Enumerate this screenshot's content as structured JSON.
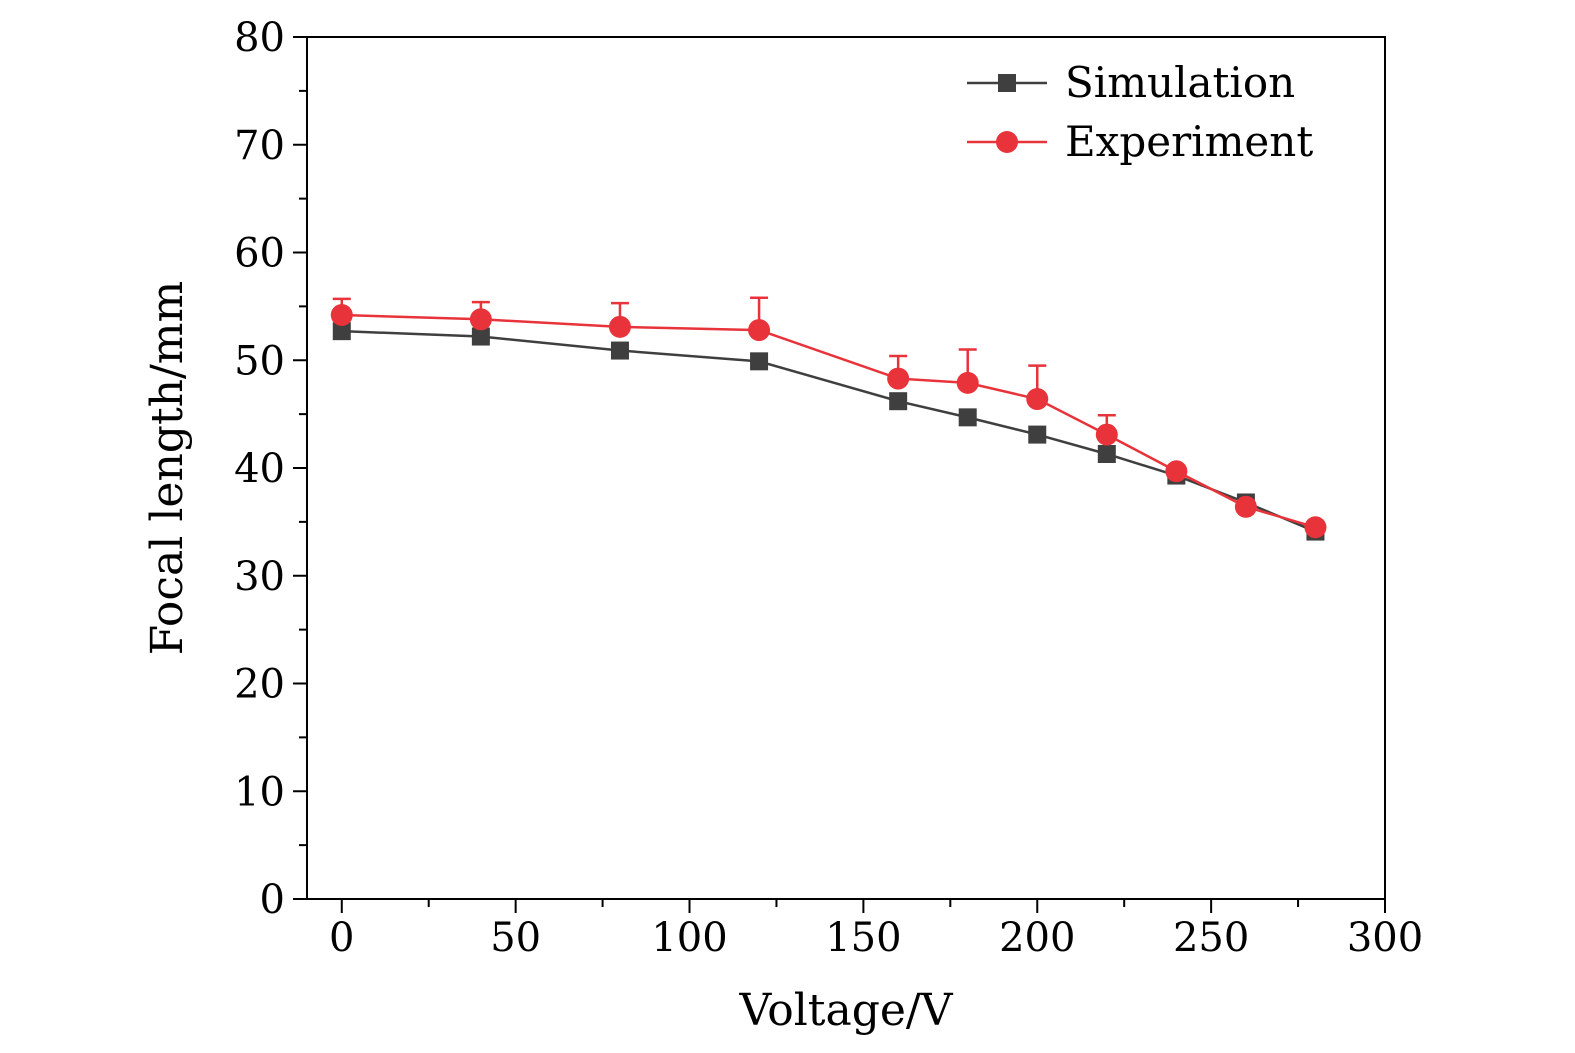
{
  "chart_data": {
    "type": "line",
    "title": "",
    "xlabel": "Voltage/V",
    "ylabel": "Focal length/mm",
    "xlim": [
      -10,
      300
    ],
    "ylim": [
      0,
      80
    ],
    "xticks": [
      0,
      50,
      100,
      150,
      200,
      250,
      300
    ],
    "yticks": [
      0,
      10,
      20,
      30,
      40,
      50,
      60,
      70,
      80
    ],
    "xtick_labels": [
      "0",
      "50",
      "100",
      "150",
      "200",
      "250",
      "300"
    ],
    "ytick_labels": [
      "0",
      "10",
      "20",
      "30",
      "40",
      "50",
      "60",
      "70",
      "80"
    ],
    "legend_position": "top-right",
    "grid": false,
    "series": [
      {
        "name": "Simulation",
        "color": "#3f3f3f",
        "marker": "square",
        "x": [
          0,
          40,
          80,
          120,
          160,
          180,
          200,
          220,
          240,
          260,
          280
        ],
        "y": [
          52.7,
          52.2,
          50.9,
          49.9,
          46.2,
          44.7,
          43.1,
          41.3,
          39.3,
          36.8,
          34.1
        ]
      },
      {
        "name": "Experiment",
        "color": "#e8333a",
        "marker": "circle",
        "x": [
          0,
          40,
          80,
          120,
          160,
          180,
          200,
          220,
          240,
          260,
          280
        ],
        "y": [
          54.2,
          53.8,
          53.1,
          52.8,
          48.3,
          47.9,
          46.4,
          43.1,
          39.7,
          36.4,
          34.5
        ],
        "error": [
          1.5,
          1.6,
          2.2,
          3.0,
          2.1,
          3.1,
          3.1,
          1.8,
          0.5,
          0.5,
          0.3
        ]
      }
    ]
  }
}
